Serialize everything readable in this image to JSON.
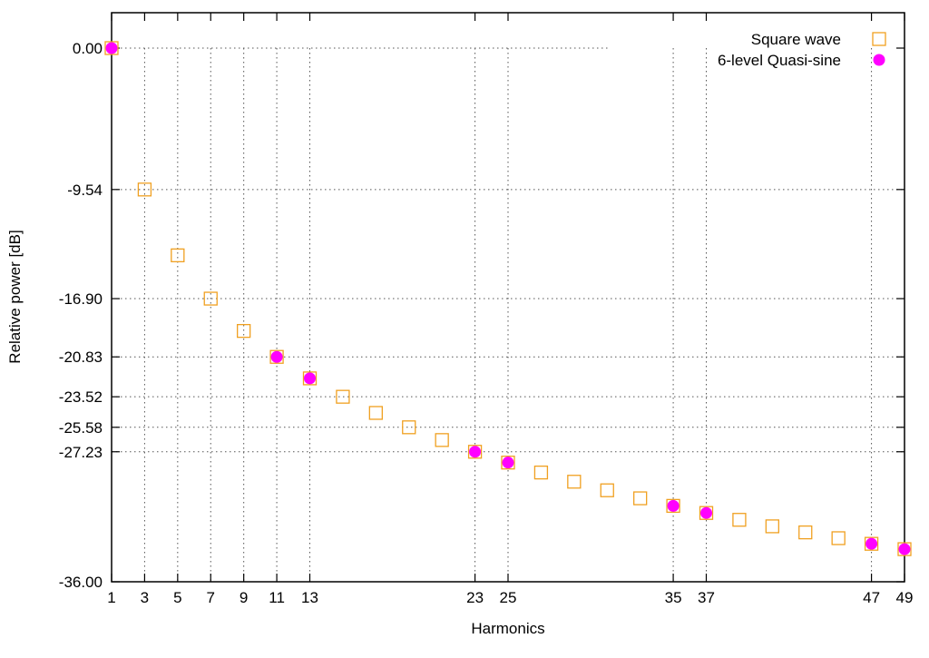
{
  "chart_data": {
    "type": "scatter",
    "title": "",
    "xlabel": "Harmonics",
    "ylabel": "Relative power [dB]",
    "xlim": [
      1,
      49
    ],
    "ylim": [
      -36,
      0
    ],
    "x_ticks": [
      1,
      3,
      5,
      7,
      9,
      11,
      13,
      23,
      25,
      35,
      37,
      47,
      49
    ],
    "y_ticks": [
      0,
      -9.54,
      -16.9,
      -20.83,
      -23.52,
      -25.58,
      -27.23,
      -36
    ],
    "y_tick_labels": [
      "0.00",
      "-9.54",
      "-16.90",
      "-20.83",
      "-23.52",
      "-25.58",
      "-27.23",
      "-36.00"
    ],
    "grid": true,
    "legend_position": "top-right",
    "series": [
      {
        "name": "Square wave",
        "marker": "open-square",
        "color": "#f0a020",
        "x": [
          1,
          3,
          5,
          7,
          9,
          11,
          13,
          15,
          17,
          19,
          21,
          23,
          25,
          27,
          29,
          31,
          33,
          35,
          37,
          39,
          41,
          43,
          45,
          47,
          49
        ],
        "y": [
          0,
          -9.54,
          -13.98,
          -16.9,
          -19.08,
          -20.83,
          -22.28,
          -23.52,
          -24.61,
          -25.58,
          -26.44,
          -27.23,
          -27.96,
          -28.63,
          -29.25,
          -29.83,
          -30.37,
          -30.88,
          -31.36,
          -31.82,
          -32.26,
          -32.67,
          -33.06,
          -33.44,
          -33.8
        ]
      },
      {
        "name": "6-level Quasi-sine",
        "marker": "filled-circle",
        "color": "#ff00ff",
        "x": [
          1,
          11,
          13,
          23,
          25,
          35,
          37,
          47,
          49
        ],
        "y": [
          0,
          -20.83,
          -22.28,
          -27.23,
          -27.96,
          -30.88,
          -31.36,
          -33.44,
          -33.8
        ]
      }
    ]
  }
}
